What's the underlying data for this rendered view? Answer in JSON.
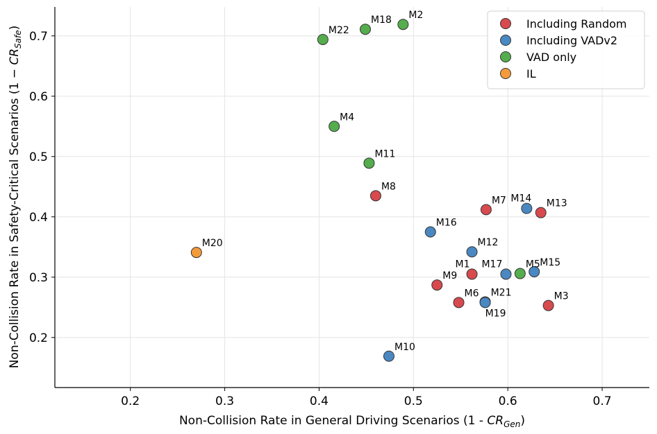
{
  "chart_data": {
    "type": "scatter",
    "title": "",
    "xlabel_prefix": "Non-Collision Rate in General Driving Scenarios (1 - ",
    "xlabel_sym": "CR",
    "xlabel_sub": "Gen",
    "xlabel_suffix": ")",
    "ylabel_prefix": "Non-Collision Rate in Safety-Critical Scenarios (1 − ",
    "ylabel_sym": "CR",
    "ylabel_sub": "Safe",
    "ylabel_suffix": ")",
    "xlim": [
      0.12,
      0.75
    ],
    "ylim": [
      0.117,
      0.748
    ],
    "xticks": [
      0.2,
      0.3,
      0.4,
      0.5,
      0.6,
      0.7
    ],
    "yticks": [
      0.2,
      0.3,
      0.4,
      0.5,
      0.6,
      0.7
    ],
    "grid": true,
    "legend_position": "top-right",
    "series": [
      {
        "name": "Including Random",
        "color": "#d84a4e",
        "points": [
          {
            "label": "M8",
            "x": 0.46,
            "y": 0.435
          },
          {
            "label": "M7",
            "x": 0.577,
            "y": 0.412
          },
          {
            "label": "M13",
            "x": 0.635,
            "y": 0.407
          },
          {
            "label": "M1",
            "x": 0.562,
            "y": 0.305
          },
          {
            "label": "M9",
            "x": 0.525,
            "y": 0.287
          },
          {
            "label": "M6",
            "x": 0.548,
            "y": 0.258
          },
          {
            "label": "M3",
            "x": 0.643,
            "y": 0.253
          }
        ]
      },
      {
        "name": "Including VADv2",
        "color": "#4a88c2",
        "points": [
          {
            "label": "M14",
            "x": 0.62,
            "y": 0.414
          },
          {
            "label": "M16",
            "x": 0.518,
            "y": 0.375
          },
          {
            "label": "M12",
            "x": 0.562,
            "y": 0.342
          },
          {
            "label": "M17",
            "x": 0.598,
            "y": 0.305
          },
          {
            "label": "M15",
            "x": 0.628,
            "y": 0.309
          },
          {
            "label": "M21",
            "x": 0.576,
            "y": 0.259
          },
          {
            "label": "M19",
            "x": 0.576,
            "y": 0.258
          },
          {
            "label": "M10",
            "x": 0.474,
            "y": 0.169
          }
        ]
      },
      {
        "name": "VAD only",
        "color": "#55ad4e",
        "points": [
          {
            "label": "M2",
            "x": 0.489,
            "y": 0.719
          },
          {
            "label": "M18",
            "x": 0.449,
            "y": 0.711
          },
          {
            "label": "M22",
            "x": 0.404,
            "y": 0.694
          },
          {
            "label": "M4",
            "x": 0.416,
            "y": 0.55
          },
          {
            "label": "M11",
            "x": 0.453,
            "y": 0.489
          },
          {
            "label": "M5",
            "x": 0.613,
            "y": 0.306
          }
        ]
      },
      {
        "name": "IL",
        "color": "#f39a3b",
        "points": [
          {
            "label": "M20",
            "x": 0.27,
            "y": 0.341
          }
        ]
      }
    ]
  }
}
